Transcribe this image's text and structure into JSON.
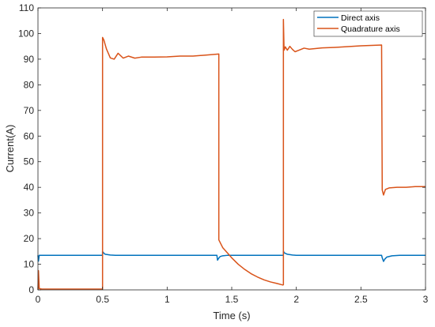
{
  "chart_data": {
    "type": "line",
    "title": "",
    "xlabel": "Time (s)",
    "ylabel": "Current(A)",
    "xlim": [
      0,
      3
    ],
    "ylim": [
      0,
      110
    ],
    "xticks": [
      0,
      0.5,
      1,
      1.5,
      2,
      2.5,
      3
    ],
    "xtick_labels": [
      "0",
      "0.5",
      "1",
      "1.5",
      "2",
      "2.5",
      "3"
    ],
    "yticks": [
      0,
      10,
      20,
      30,
      40,
      50,
      60,
      70,
      80,
      90,
      100,
      110
    ],
    "ytick_labels": [
      "0",
      "10",
      "20",
      "30",
      "40",
      "50",
      "60",
      "70",
      "80",
      "90",
      "100",
      "110"
    ],
    "grid": false,
    "legend_position": "top-right",
    "series": [
      {
        "name": "Direct axis",
        "color": "#0072BD",
        "x": [
          0,
          0.004,
          0.01,
          0.5,
          0.5,
          0.505,
          0.52,
          0.56,
          0.6,
          1.0,
          1.385,
          1.39,
          1.4,
          1.41,
          1.43,
          1.47,
          1.55,
          1.9,
          1.9,
          1.905,
          1.93,
          1.97,
          2.0,
          2.66,
          2.665,
          2.675,
          2.685,
          2.7,
          2.74,
          2.8,
          3.0
        ],
        "y": [
          13.5,
          11.2,
          13.5,
          13.5,
          15.0,
          14.6,
          13.9,
          13.6,
          13.5,
          13.5,
          13.5,
          11.6,
          12.4,
          13.0,
          13.3,
          13.5,
          13.5,
          13.5,
          15.2,
          14.5,
          13.9,
          13.6,
          13.5,
          13.5,
          12.5,
          11.1,
          12.0,
          12.8,
          13.3,
          13.5,
          13.5
        ]
      },
      {
        "name": "Quadrature axis",
        "color": "#D95319",
        "x": [
          0,
          0.004,
          0.01,
          0.03,
          0.5,
          0.5,
          0.51,
          0.53,
          0.56,
          0.59,
          0.62,
          0.66,
          0.7,
          0.75,
          0.8,
          0.9,
          1.0,
          1.1,
          1.2,
          1.3,
          1.4,
          1.4,
          1.43,
          1.5,
          1.55,
          1.6,
          1.65,
          1.7,
          1.75,
          1.8,
          1.85,
          1.895,
          1.9,
          1.9,
          1.905,
          1.915,
          1.93,
          1.95,
          1.97,
          1.99,
          2.02,
          2.06,
          2.1,
          2.2,
          2.3,
          2.4,
          2.5,
          2.6,
          2.66,
          2.665,
          2.675,
          2.69,
          2.72,
          2.78,
          2.85,
          2.92,
          3.0
        ],
        "y": [
          0,
          7.5,
          0.5,
          0.3,
          0.3,
          98.5,
          97.5,
          94.0,
          90.5,
          90.0,
          92.3,
          90.4,
          91.2,
          90.4,
          90.8,
          90.8,
          90.9,
          91.2,
          91.2,
          91.6,
          92.0,
          19.5,
          16.5,
          12.5,
          10.0,
          8.0,
          6.3,
          5.0,
          3.9,
          3.1,
          2.5,
          1.9,
          2.0,
          105.5,
          93.5,
          94.8,
          93.5,
          95.0,
          93.8,
          92.9,
          93.5,
          94.3,
          93.9,
          94.4,
          94.6,
          94.9,
          95.2,
          95.4,
          95.5,
          39.0,
          37.0,
          39.2,
          39.8,
          40.0,
          40.0,
          40.3,
          40.3
        ]
      }
    ]
  }
}
